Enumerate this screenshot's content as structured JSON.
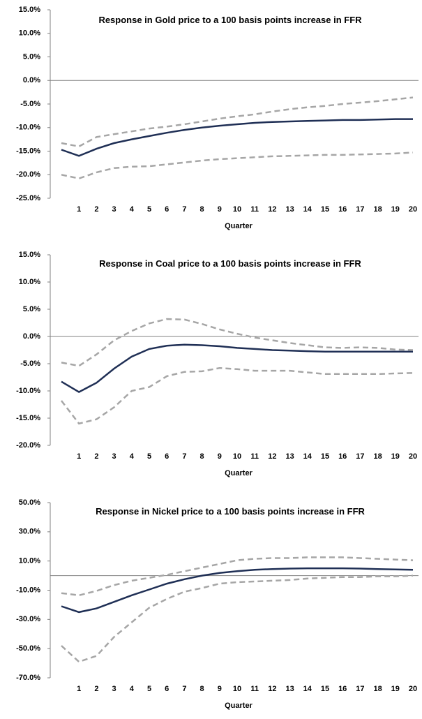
{
  "chart_data": [
    {
      "type": "line",
      "title": "Response in Gold price to a  100 basis points increase in FFR",
      "x_label": "Quarter",
      "categories": [
        null,
        "1",
        "2",
        "3",
        "4",
        "5",
        "6",
        "7",
        "8",
        "9",
        "10",
        "11",
        "12",
        "13",
        "14",
        "15",
        "16",
        "17",
        "18",
        "19",
        "20"
      ],
      "ylim": [
        -25,
        15
      ],
      "yticks": [
        {
          "value": -25,
          "label": "-25.0%"
        },
        {
          "value": -20,
          "label": "-20.0%"
        },
        {
          "value": -15,
          "label": "-15.0%"
        },
        {
          "value": -10,
          "label": "-10.0%"
        },
        {
          "value": -5,
          "label": "-5.0%"
        },
        {
          "value": 0,
          "label": "0.0%"
        },
        {
          "value": 5,
          "label": "5.0%"
        },
        {
          "value": 10,
          "label": "10.0%"
        },
        {
          "value": 15,
          "label": "15.0%"
        }
      ],
      "series": [
        {
          "color": "#1f2f55",
          "dashed": false,
          "values": [
            -14.7,
            -16,
            -14.5,
            -13.3,
            -12.5,
            -11.8,
            -11.1,
            -10.5,
            -10,
            -9.6,
            -9.3,
            -9.0,
            -8.8,
            -8.7,
            -8.6,
            -8.5,
            -8.4,
            -8.4,
            -8.3,
            -8.2,
            -8.2
          ]
        },
        {
          "color": "#a6a6a6",
          "dashed": true,
          "values": [
            -13.3,
            -14,
            -12,
            -11.4,
            -10.8,
            -10.2,
            -9.8,
            -9.3,
            -8.7,
            -8.1,
            -7.6,
            -7.2,
            -6.6,
            -6.1,
            -5.7,
            -5.4,
            -5.0,
            -4.7,
            -4.4,
            -4.0,
            -3.6
          ]
        },
        {
          "color": "#a6a6a6",
          "dashed": true,
          "values": [
            -20,
            -20.8,
            -19.5,
            -18.6,
            -18.3,
            -18.2,
            -17.8,
            -17.4,
            -17,
            -16.7,
            -16.5,
            -16.3,
            -16.1,
            -16,
            -15.9,
            -15.8,
            -15.8,
            -15.7,
            -15.6,
            -15.5,
            -15.3
          ]
        }
      ]
    },
    {
      "type": "line",
      "title": "Response in Coal price to a  100 basis points increase in FFR",
      "x_label": "Quarter",
      "categories": [
        null,
        "1",
        "2",
        "3",
        "4",
        "5",
        "6",
        "7",
        "8",
        "9",
        "10",
        "11",
        "12",
        "13",
        "14",
        "15",
        "16",
        "17",
        "18",
        "19",
        "20"
      ],
      "ylim": [
        -20,
        15
      ],
      "yticks": [
        {
          "value": -20,
          "label": "-20.0%"
        },
        {
          "value": -15,
          "label": "-15.0%"
        },
        {
          "value": -10,
          "label": "-10.0%"
        },
        {
          "value": -5,
          "label": "-5.0%"
        },
        {
          "value": 0,
          "label": "0.0%"
        },
        {
          "value": 5,
          "label": "5.0%"
        },
        {
          "value": 10,
          "label": "10.0%"
        },
        {
          "value": 15,
          "label": "15.0%"
        }
      ],
      "series": [
        {
          "color": "#1f2f55",
          "dashed": false,
          "values": [
            -8.3,
            -10.2,
            -8.5,
            -5.9,
            -3.7,
            -2.3,
            -1.7,
            -1.5,
            -1.6,
            -1.8,
            -2.1,
            -2.3,
            -2.5,
            -2.6,
            -2.7,
            -2.8,
            -2.8,
            -2.8,
            -2.8,
            -2.8,
            -2.8
          ]
        },
        {
          "color": "#a6a6a6",
          "dashed": true,
          "values": [
            -4.8,
            -5.4,
            -3.3,
            -0.7,
            1.0,
            2.4,
            3.2,
            3.1,
            2.3,
            1.3,
            0.5,
            -0.2,
            -0.7,
            -1.2,
            -1.6,
            -2.0,
            -2.1,
            -2.0,
            -2.1,
            -2.4,
            -2.5
          ]
        },
        {
          "color": "#a6a6a6",
          "dashed": true,
          "values": [
            -11.8,
            -16,
            -15.2,
            -13,
            -10,
            -9.3,
            -7.3,
            -6.5,
            -6.4,
            -5.8,
            -6,
            -6.3,
            -6.3,
            -6.3,
            -6.6,
            -6.9,
            -6.9,
            -6.9,
            -6.9,
            -6.8,
            -6.7
          ]
        }
      ]
    },
    {
      "type": "line",
      "title": "Response in Nickel price to a  100 basis points increase in FFR",
      "x_label": "Quarter",
      "categories": [
        null,
        "1",
        "2",
        "3",
        "4",
        "5",
        "6",
        "7",
        "8",
        "9",
        "10",
        "11",
        "12",
        "13",
        "14",
        "15",
        "16",
        "17",
        "18",
        "19",
        "20"
      ],
      "ylim": [
        -70,
        50
      ],
      "yticks": [
        {
          "value": -70,
          "label": "-70.0%"
        },
        {
          "value": -50,
          "label": "-50.0%"
        },
        {
          "value": -30,
          "label": "-30.0%"
        },
        {
          "value": -10,
          "label": "-10.0%"
        },
        {
          "value": 10,
          "label": "10.0%"
        },
        {
          "value": 30,
          "label": "30.0%"
        },
        {
          "value": 50,
          "label": "50.0%"
        }
      ],
      "series": [
        {
          "color": "#1f2f55",
          "dashed": false,
          "values": [
            -21,
            -25,
            -22.5,
            -18,
            -13.5,
            -9.5,
            -5.5,
            -2.5,
            0,
            1.8,
            3,
            4,
            4.5,
            4.8,
            5,
            5,
            5,
            4.8,
            4.5,
            4.2,
            4
          ]
        },
        {
          "color": "#a6a6a6",
          "dashed": true,
          "values": [
            -12,
            -13.5,
            -10.5,
            -6.5,
            -3.5,
            -1.5,
            0.5,
            3,
            5.5,
            8,
            10.5,
            11.5,
            12,
            12,
            12.5,
            12.5,
            12.5,
            12,
            11.5,
            11,
            10.5
          ]
        },
        {
          "color": "#a6a6a6",
          "dashed": true,
          "values": [
            -48,
            -59,
            -55,
            -42,
            -32,
            -22,
            -16,
            -11,
            -8.5,
            -5.5,
            -4.5,
            -4,
            -3.5,
            -3,
            -2,
            -1.5,
            -1,
            -1,
            -0.5,
            -0.5,
            0
          ]
        }
      ]
    }
  ]
}
